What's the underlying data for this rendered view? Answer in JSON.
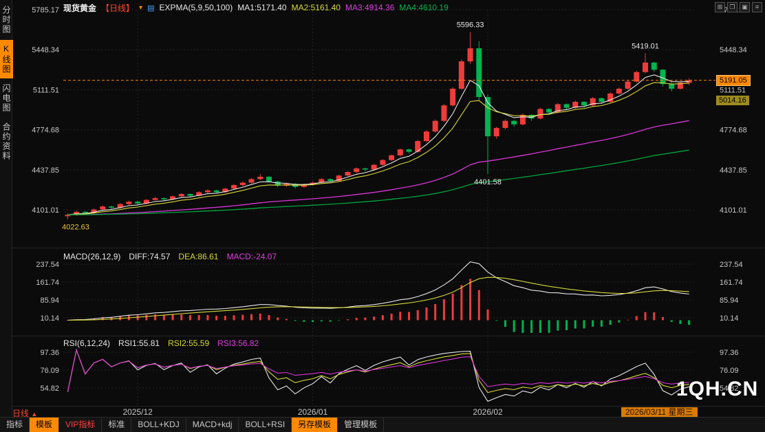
{
  "icons": {
    "dropdown": "▾",
    "indicator": "▤",
    "grid": "⊞",
    "cascade": "❐",
    "maximize": "▣",
    "list": "≡",
    "up_triangle": "▲"
  },
  "header": {
    "symbol": "现货黄金",
    "period": "【日线】",
    "indicator": "EXPMA(5,9,50,100)",
    "ma1": "MA1:5171.40",
    "ma2": "MA2:5161.40",
    "ma3": "MA3:4914.36",
    "ma4": "MA4:4610.19"
  },
  "sidebar": {
    "items": [
      {
        "label": "分时图",
        "active": false
      },
      {
        "label": "K线图",
        "active": true
      },
      {
        "label": "闪电图",
        "active": false
      },
      {
        "label": "合约资料",
        "active": false
      }
    ]
  },
  "badges": {
    "last_price": "5191.05",
    "reference": "5014.16"
  },
  "macd_panel": {
    "title": "MACD(26,12,9)",
    "diff": "DIFF:74.57",
    "dea": "DEA:86.61",
    "macd": "MACD:-24.07"
  },
  "rsi_panel": {
    "title": "RSI(6,12,24)",
    "rsi1": "RSI1:55.81",
    "rsi2": "RSI2:55.59",
    "rsi3": "RSI3:56.82"
  },
  "xaxis": {
    "period_label": "日线",
    "current_date": "2026/03/11 星期三"
  },
  "bottom_bar": {
    "items": [
      {
        "label": "指标",
        "style": "plain"
      },
      {
        "label": "模板",
        "style": "orange"
      },
      {
        "label": "VIP指标",
        "style": "red"
      },
      {
        "label": "标准",
        "style": "plain"
      },
      {
        "label": "BOLL+KDJ",
        "style": "plain"
      },
      {
        "label": "MACD+kdj",
        "style": "plain"
      },
      {
        "label": "BOLL+RSI",
        "style": "plain"
      },
      {
        "label": "另存模板",
        "style": "orange"
      },
      {
        "label": "管理模板",
        "style": "plain"
      }
    ]
  },
  "watermark": "1QH.CN",
  "chart_data": {
    "type": "candlestick",
    "title": "现货黄金 日线",
    "price_axis": [
      5785.17,
      5448.34,
      5111.51,
      4774.68,
      4437.85,
      4101.01
    ],
    "macd_axis": [
      237.54,
      161.74,
      85.94,
      10.14
    ],
    "rsi_axis": [
      97.36,
      76.09,
      54.82
    ],
    "ema_periods": [
      5,
      9,
      50,
      100
    ],
    "last_price": 5191.05,
    "reference_price": 5014.16,
    "x_ticks": [
      {
        "label": "2025/12",
        "index": 8
      },
      {
        "label": "2026/01",
        "index": 28
      },
      {
        "label": "2026/02",
        "index": 48
      }
    ],
    "annotations": [
      {
        "text": "5596.33",
        "day": 46,
        "price": 5596.33,
        "pos": "above",
        "color": "#e8e8e8"
      },
      {
        "text": "5419.01",
        "day": 66,
        "price": 5419.01,
        "pos": "above",
        "color": "#e8e8e8"
      },
      {
        "text": "4401.58",
        "day": 48,
        "price": 4401.58,
        "pos": "below",
        "color": "#e8e8e8"
      },
      {
        "text": "4022.63",
        "day": 0,
        "price": 4022.63,
        "pos": "below",
        "color": "#e8c23c"
      }
    ],
    "colors": {
      "up": "#f03b3b",
      "down": "#00b450",
      "ma1": "#e8e8e8",
      "ma2": "#d8d83c",
      "ma3": "#d836d8",
      "ma4": "#00a43c",
      "accent": "#ff8a00",
      "grid": "#242424",
      "axis_text": "#c8c8c8"
    },
    "candles": [
      [
        4048,
        4072,
        4022.63,
        4060
      ],
      [
        4060,
        4095,
        4050,
        4085
      ],
      [
        4085,
        4092,
        4062,
        4075
      ],
      [
        4075,
        4112,
        4068,
        4105
      ],
      [
        4105,
        4138,
        4098,
        4130
      ],
      [
        4130,
        4136,
        4108,
        4120
      ],
      [
        4120,
        4158,
        4112,
        4150
      ],
      [
        4150,
        4178,
        4142,
        4170
      ],
      [
        4170,
        4176,
        4146,
        4155
      ],
      [
        4155,
        4192,
        4148,
        4185
      ],
      [
        4185,
        4210,
        4178,
        4200
      ],
      [
        4200,
        4206,
        4178,
        4190
      ],
      [
        4190,
        4222,
        4182,
        4215
      ],
      [
        4215,
        4242,
        4208,
        4235
      ],
      [
        4235,
        4240,
        4210,
        4220
      ],
      [
        4220,
        4258,
        4214,
        4250
      ],
      [
        4250,
        4274,
        4242,
        4265
      ],
      [
        4265,
        4270,
        4238,
        4250
      ],
      [
        4250,
        4288,
        4244,
        4280
      ],
      [
        4280,
        4318,
        4272,
        4310
      ],
      [
        4310,
        4340,
        4300,
        4330
      ],
      [
        4330,
        4368,
        4322,
        4360
      ],
      [
        4360,
        4402,
        4352,
        4380
      ],
      [
        4380,
        4386,
        4330,
        4340
      ],
      [
        4340,
        4346,
        4292,
        4305
      ],
      [
        4305,
        4330,
        4295,
        4320
      ],
      [
        4320,
        4326,
        4282,
        4295
      ],
      [
        4295,
        4322,
        4286,
        4315
      ],
      [
        4315,
        4340,
        4306,
        4330
      ],
      [
        4330,
        4368,
        4322,
        4360
      ],
      [
        4360,
        4366,
        4334,
        4345
      ],
      [
        4345,
        4398,
        4338,
        4390
      ],
      [
        4390,
        4428,
        4382,
        4420
      ],
      [
        4420,
        4458,
        4412,
        4450
      ],
      [
        4450,
        4456,
        4424,
        4440
      ],
      [
        4440,
        4488,
        4432,
        4480
      ],
      [
        4480,
        4528,
        4472,
        4520
      ],
      [
        4520,
        4568,
        4512,
        4560
      ],
      [
        4560,
        4618,
        4552,
        4610
      ],
      [
        4610,
        4616,
        4578,
        4590
      ],
      [
        4590,
        4690,
        4582,
        4680
      ],
      [
        4680,
        4772,
        4670,
        4760
      ],
      [
        4760,
        4862,
        4750,
        4850
      ],
      [
        4850,
        4992,
        4840,
        4980
      ],
      [
        4980,
        5132,
        4970,
        5120
      ],
      [
        5120,
        5365,
        5110,
        5350
      ],
      [
        5350,
        5596.33,
        5330,
        5460
      ],
      [
        5460,
        5520,
        5020,
        5050
      ],
      [
        5050,
        5070,
        4401.58,
        4720
      ],
      [
        4720,
        4800,
        4700,
        4790
      ],
      [
        4790,
        4862,
        4780,
        4850
      ],
      [
        4850,
        4856,
        4800,
        4820
      ],
      [
        4820,
        4910,
        4812,
        4900
      ],
      [
        4900,
        4906,
        4850,
        4870
      ],
      [
        4870,
        4960,
        4862,
        4950
      ],
      [
        4950,
        4956,
        4900,
        4920
      ],
      [
        4920,
        5000,
        4912,
        4990
      ],
      [
        4990,
        4996,
        4940,
        4960
      ],
      [
        4960,
        5020,
        4952,
        5010
      ],
      [
        5010,
        5016,
        4962,
        4980
      ],
      [
        4980,
        5050,
        4972,
        5040
      ],
      [
        5040,
        5046,
        4992,
        5010
      ],
      [
        5010,
        5090,
        5002,
        5080
      ],
      [
        5080,
        5130,
        5072,
        5120
      ],
      [
        5120,
        5190,
        5112,
        5180
      ],
      [
        5180,
        5270,
        5172,
        5260
      ],
      [
        5260,
        5419.01,
        5250,
        5340
      ],
      [
        5340,
        5346,
        5262,
        5280
      ],
      [
        5280,
        5286,
        5140,
        5160
      ],
      [
        5160,
        5176,
        5098,
        5120
      ],
      [
        5120,
        5180,
        5112,
        5170
      ],
      [
        5170,
        5208,
        5150,
        5191.05
      ]
    ]
  }
}
